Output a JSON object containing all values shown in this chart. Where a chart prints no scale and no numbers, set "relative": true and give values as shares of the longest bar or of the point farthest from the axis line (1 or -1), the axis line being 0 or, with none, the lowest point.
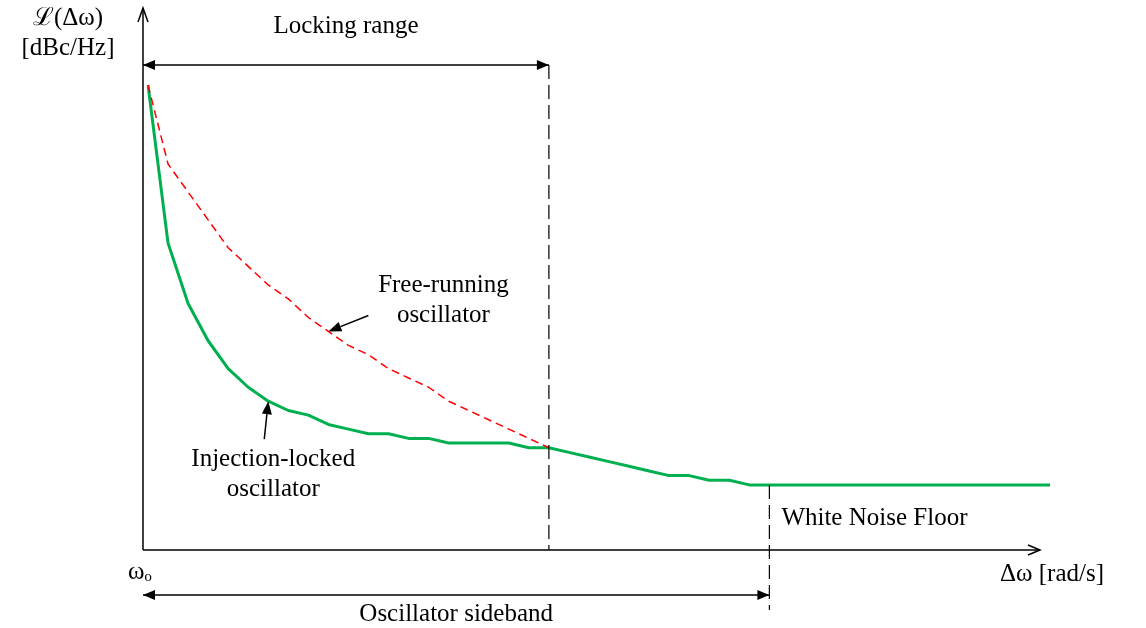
{
  "chart_data": {
    "type": "line",
    "relative": true,
    "xlabel": "Δω [rad/s]",
    "ylabel": "ℒ(Δω) [dBc/Hz]",
    "categories": [
      null,
      null,
      null,
      null,
      null,
      null,
      null,
      null,
      null,
      null,
      null,
      null,
      null,
      null,
      null,
      null,
      null,
      null,
      null,
      null,
      null,
      null,
      null,
      null,
      null,
      null,
      null,
      null,
      null,
      null,
      null,
      null,
      null,
      null,
      null,
      null,
      null,
      null,
      null,
      null,
      null,
      null,
      null,
      null,
      null,
      null
    ],
    "series": [
      {
        "color": "#00b050",
        "line_style": "solid",
        "values": [
          1.0,
          0.66,
          0.53,
          0.45,
          0.39,
          0.35,
          0.32,
          0.3,
          0.29,
          0.27,
          0.26,
          0.25,
          0.25,
          0.24,
          0.24,
          0.23,
          0.23,
          0.23,
          0.23,
          0.22,
          0.22,
          0.21,
          0.2,
          0.19,
          0.18,
          0.17,
          0.16,
          0.16,
          0.15,
          0.15,
          0.14,
          0.14,
          0.14,
          0.14,
          0.14,
          0.14,
          0.14,
          0.14,
          0.14,
          0.14,
          0.14,
          0.14,
          0.14,
          0.14,
          0.14,
          0.14
        ]
      },
      {
        "color": "#ff0000",
        "line_style": "dashed",
        "values": [
          1.0,
          0.83,
          0.77,
          0.71,
          0.65,
          0.61,
          0.57,
          0.54,
          0.5,
          0.47,
          0.44,
          0.42,
          0.39,
          0.37,
          0.35,
          0.32,
          0.3,
          0.28,
          0.26,
          0.24,
          0.22,
          null,
          null,
          null,
          null,
          null,
          null,
          null,
          null,
          null,
          null,
          null,
          null,
          null,
          null,
          null,
          null,
          null,
          null,
          null,
          null,
          null,
          null,
          null,
          null,
          null
        ]
      }
    ],
    "annotations": [
      "Locking range",
      "Free-running oscillator",
      "Injection-locked oscillator",
      "White Noise Floor",
      "ωₒ",
      "Oscillator sideband"
    ],
    "marker": "none"
  }
}
